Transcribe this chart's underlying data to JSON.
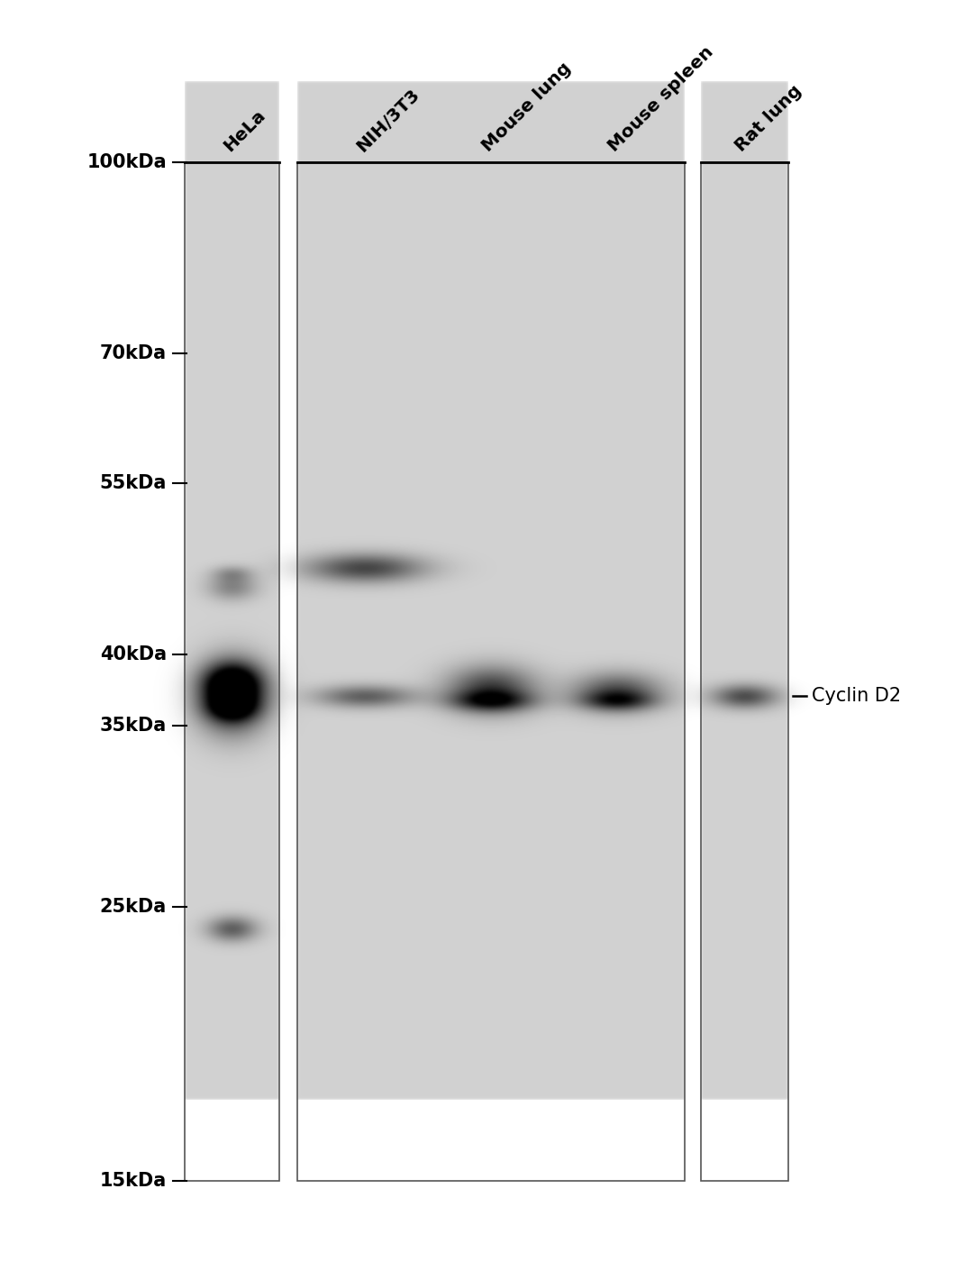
{
  "white_bg": "#ffffff",
  "lane_labels": [
    "HeLa",
    "NIH/3T3",
    "Mouse lung",
    "Mouse spleen",
    "Rat lung"
  ],
  "mw_markers": [
    "100kDa",
    "70kDa",
    "55kDa",
    "40kDa",
    "35kDa",
    "25kDa",
    "15kDa"
  ],
  "mw_values": [
    100,
    70,
    55,
    40,
    35,
    25,
    15
  ],
  "cyclin_d2_label": "Cyclin D2",
  "fig_width": 10.8,
  "fig_height": 14.0,
  "dpi": 100,
  "gel_bg": 0.82,
  "gel_color_light": 0.88,
  "band_cyclinD2_mw": 37,
  "band_NIH_upper_mw": 47,
  "band_HeLa_upper_mw": 45,
  "band_HeLa_lower_mw": 24
}
